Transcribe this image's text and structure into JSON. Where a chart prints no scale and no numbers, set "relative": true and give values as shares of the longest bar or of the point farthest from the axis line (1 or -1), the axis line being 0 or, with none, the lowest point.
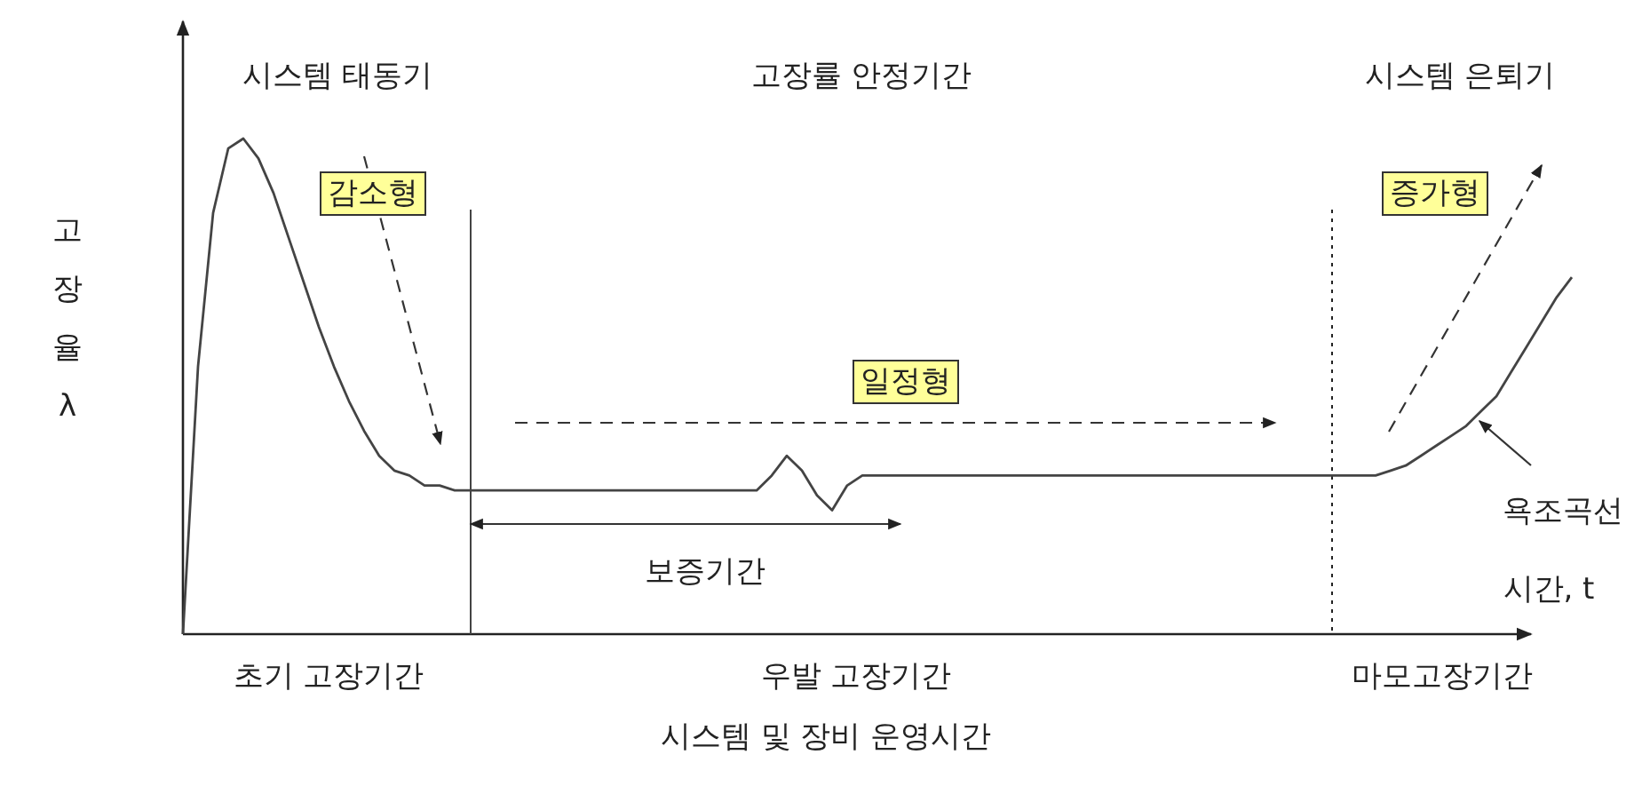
{
  "chart_data": {
    "type": "line",
    "relative": true,
    "xlabel": "시스템 및 장비 운영시간",
    "ylabel": "고장율 λ",
    "categories": [
      null,
      null,
      null,
      null,
      null,
      null,
      null,
      null,
      null,
      null,
      null,
      null,
      null,
      null,
      null,
      null,
      null,
      null,
      null,
      null,
      null,
      null,
      null,
      null,
      null,
      null,
      null,
      null,
      null,
      null,
      null,
      null,
      null,
      null,
      null,
      null,
      null,
      null,
      null,
      null,
      null,
      null,
      null,
      null,
      null,
      null,
      null,
      null,
      null,
      null,
      null,
      null,
      null,
      null,
      null,
      null,
      null,
      null,
      null,
      null,
      null,
      null,
      null,
      null,
      null,
      null,
      null,
      null,
      null,
      null,
      null,
      null,
      null,
      null,
      null,
      null,
      null,
      null,
      null,
      null,
      null,
      null,
      null,
      null,
      null,
      null,
      null,
      null,
      null,
      null,
      null,
      null,
      null
    ],
    "series": [
      {
        "color": "#444444",
        "values": [
          0,
          0.54,
          0.85,
          0.98,
          1,
          0.96,
          0.89,
          0.8,
          0.71,
          0.62,
          0.54,
          0.47,
          0.41,
          0.36,
          0.33,
          0.32,
          0.3,
          0.3,
          0.29,
          0.29,
          0.29,
          0.29,
          0.29,
          0.29,
          0.29,
          0.29,
          0.29,
          0.29,
          0.29,
          0.29,
          0.29,
          0.29,
          0.29,
          0.29,
          0.29,
          0.29,
          0.29,
          0.29,
          0.29,
          0.32,
          0.36,
          0.33,
          0.28,
          0.25,
          0.3,
          0.32,
          0.32,
          0.32,
          0.32,
          0.32,
          0.32,
          0.32,
          0.32,
          0.32,
          0.32,
          0.32,
          0.32,
          0.32,
          0.32,
          0.32,
          0.32,
          0.32,
          0.32,
          0.32,
          0.32,
          0.32,
          0.32,
          0.32,
          0.32,
          0.32,
          0.32,
          0.32,
          0.32,
          0.32,
          0.32,
          0.32,
          0.32,
          0.32,
          0.32,
          0.32,
          0.33,
          0.34,
          0.36,
          0.38,
          0.4,
          0.42,
          0.45,
          0.48,
          0.53,
          0.58,
          0.63,
          0.68,
          0.72
        ]
      }
    ],
    "annotations": [
      "시스템 태동기",
      "고장률 안정기간",
      "시스템 은퇴기",
      "초기 고장기간",
      "우발 고장기간",
      "마모고장기간",
      "감소형",
      "일정형",
      "증가형",
      "보증기간",
      "욕조곡선",
      "시간, t"
    ]
  }
}
